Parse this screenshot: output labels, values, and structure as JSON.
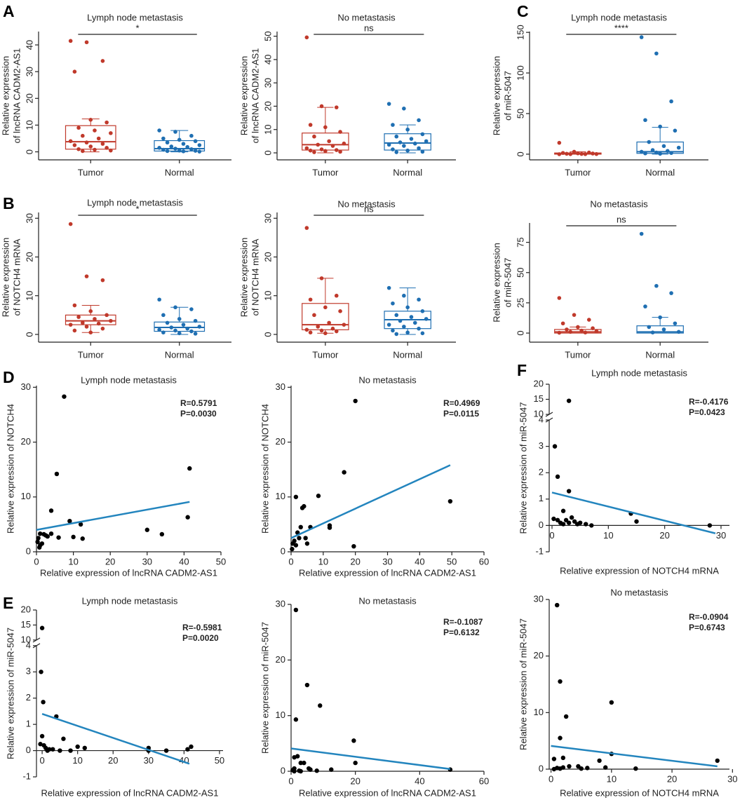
{
  "chart_data": [
    {
      "type": "box",
      "panel": "A",
      "title": "Lymph node metastasis",
      "ylabel": [
        "Relative expression",
        "of lncRNA CADM2-AS1"
      ],
      "categories": [
        "Tumor",
        "Normal"
      ],
      "significance": "*",
      "groups": [
        {
          "color": "#c0392b",
          "values": [
            41.5,
            41,
            34,
            30,
            12,
            11,
            9,
            8,
            7,
            6,
            5,
            4,
            3.5,
            3,
            2.5,
            2,
            1.5,
            1,
            0.8,
            0.5,
            0.3
          ],
          "box": {
            "whislo": 0,
            "q1": 1,
            "median": 3.8,
            "q3": 9.8,
            "whishi": 12.3
          }
        },
        {
          "color": "#1f6fb2",
          "values": [
            8,
            7.5,
            6,
            5,
            4.5,
            4,
            3.5,
            3,
            2.5,
            2,
            1.8,
            1.5,
            1.2,
            1,
            0.8,
            0.5,
            0.4,
            0.3,
            0.2,
            0.1
          ],
          "box": {
            "whislo": 0,
            "q1": 0.3,
            "median": 1.2,
            "q3": 4.2,
            "whishi": 8
          }
        }
      ],
      "ylim": [
        -3,
        45
      ],
      "yticks": [
        0,
        10,
        20,
        30,
        40
      ]
    },
    {
      "type": "box",
      "title": "No metastasis",
      "ylabel": [
        "Relative expression",
        "of lncRNA CADM2-AS1"
      ],
      "categories": [
        "Tumor",
        "Normal"
      ],
      "significance": "ns",
      "groups": [
        {
          "color": "#c0392b",
          "values": [
            49.5,
            20,
            19.5,
            12,
            11,
            9,
            7,
            5,
            4,
            3.5,
            3,
            2,
            1.5,
            1.2,
            1,
            0.8,
            0.5,
            0.3
          ],
          "box": {
            "whislo": 0,
            "q1": 1.2,
            "median": 3.5,
            "q3": 8.5,
            "whishi": 19.5
          }
        },
        {
          "color": "#1f6fb2",
          "values": [
            21,
            19,
            14,
            12,
            10,
            8,
            7,
            6,
            5,
            4.5,
            4,
            3.5,
            3,
            2,
            1.5,
            1,
            0.5,
            0.3
          ],
          "box": {
            "whislo": 0,
            "q1": 1.2,
            "median": 4.2,
            "q3": 8.2,
            "whishi": 12
          }
        }
      ],
      "ylim": [
        -3,
        52
      ],
      "yticks": [
        0,
        10,
        20,
        30,
        40,
        50
      ]
    },
    {
      "type": "box",
      "panel": "C",
      "title": "Lymph node metastasis",
      "ylabel": [
        "Relative expression",
        "of miR-5047"
      ],
      "categories": [
        "Tumor",
        "Normal"
      ],
      "significance": "****",
      "groups": [
        {
          "color": "#c0392b",
          "values": [
            14,
            3,
            2,
            1.5,
            1,
            0.8,
            0.5,
            0.3,
            0.2,
            0.1,
            0.1,
            0
          ],
          "box": {
            "whislo": 0,
            "q1": 0,
            "median": 0.5,
            "q3": 1.5,
            "whishi": 3
          }
        },
        {
          "color": "#1f6fb2",
          "values": [
            144,
            124,
            65,
            42,
            34,
            29,
            15,
            10,
            8,
            5,
            4,
            3,
            2,
            1.5,
            1,
            0.5
          ],
          "box": {
            "whislo": 0,
            "q1": 1,
            "median": 3,
            "q3": 15,
            "whishi": 33
          }
        }
      ],
      "ylim": [
        -7,
        151
      ],
      "yticks": [
        0,
        50,
        100,
        150
      ]
    },
    {
      "type": "box",
      "panel": "B",
      "title": "Lymph node metastasis",
      "ylabel": [
        "Relative expression",
        "of NOTCH4 mRNA"
      ],
      "categories": [
        "Tumor",
        "Normal"
      ],
      "significance": "*",
      "groups": [
        {
          "color": "#c0392b",
          "values": [
            28.5,
            15,
            14,
            7.5,
            6,
            5,
            4.5,
            4,
            3.5,
            3,
            2.8,
            2.5,
            2,
            1.5,
            1,
            0.5
          ],
          "box": {
            "whislo": 0.5,
            "q1": 2.5,
            "median": 3.5,
            "q3": 5,
            "whishi": 7.5
          }
        },
        {
          "color": "#1f6fb2",
          "values": [
            9,
            7,
            6.5,
            5,
            4,
            3.5,
            3,
            2.5,
            2,
            1.8,
            1.5,
            1.2,
            1,
            0.8,
            0.5,
            0.3,
            0.2
          ],
          "box": {
            "whislo": 0,
            "q1": 0.8,
            "median": 1.8,
            "q3": 3.2,
            "whishi": 7
          }
        }
      ],
      "ylim": [
        -2,
        31.5
      ],
      "yticks": [
        0,
        10,
        20,
        30
      ]
    },
    {
      "type": "box",
      "title": "No metastasis",
      "ylabel": [
        "Relative expression",
        "of NOTCH4 mRNA"
      ],
      "categories": [
        "Tumor",
        "Normal"
      ],
      "significance": "ns",
      "groups": [
        {
          "color": "#c0392b",
          "values": [
            27.5,
            14.5,
            10,
            9,
            7,
            6,
            5,
            3,
            2.5,
            2,
            1.5,
            1.2,
            1,
            0.8,
            0.5,
            0.3
          ],
          "box": {
            "whislo": 0.3,
            "q1": 1.2,
            "median": 2.5,
            "q3": 8,
            "whishi": 14.5
          }
        },
        {
          "color": "#1f6fb2",
          "values": [
            12,
            10,
            9,
            8,
            7,
            6,
            5,
            4.5,
            4,
            3.5,
            3,
            2.5,
            2,
            1.5,
            1,
            0.5,
            0.3,
            0.1
          ],
          "box": {
            "whislo": 0,
            "q1": 1.5,
            "median": 3.8,
            "q3": 6,
            "whishi": 12
          }
        }
      ],
      "ylim": [
        -2,
        31.5
      ],
      "yticks": [
        0,
        10,
        20,
        30
      ]
    },
    {
      "type": "box",
      "title": "No metastasis",
      "ylabel": [
        "Relative expression",
        "of miR-5047"
      ],
      "categories": [
        "Tumor",
        "Normal"
      ],
      "significance": "ns",
      "groups": [
        {
          "color": "#c0392b",
          "values": [
            29,
            15,
            11,
            8,
            5,
            4,
            3,
            2,
            1.5,
            1,
            0.5,
            0.3
          ],
          "box": {
            "whislo": 0,
            "q1": 0,
            "median": 1,
            "q3": 3,
            "whishi": 5
          }
        },
        {
          "color": "#1f6fb2",
          "values": [
            82,
            39,
            33,
            22,
            13,
            8,
            5,
            3,
            1,
            0.5
          ],
          "box": {
            "whislo": 0,
            "q1": 0,
            "median": 1,
            "q3": 6,
            "whishi": 13
          }
        }
      ],
      "ylim": [
        -7.5,
        91
      ],
      "yticks": [
        0,
        25,
        50,
        75
      ]
    },
    {
      "type": "scatter",
      "panel": "D",
      "title": "Lymph node metastasis",
      "xlabel": "Relative expression of lncRNA CADM2-AS1",
      "ylabel": "Relative expression of NOTCH4",
      "stats": [
        "R=0.5791",
        "P=0.0030"
      ],
      "color": "#000000",
      "x": [
        7.5,
        41.5,
        5.5,
        41,
        4,
        9,
        12,
        30,
        34,
        12.5,
        10,
        6,
        4,
        3,
        2,
        1,
        0.5,
        0.3,
        1.5,
        0.8,
        1,
        2.5
      ],
      "y": [
        28.3,
        15.2,
        14.2,
        6.3,
        7.5,
        5.6,
        5,
        4,
        3.2,
        2.4,
        2.7,
        2.6,
        3.3,
        2.8,
        3.2,
        3.3,
        2.5,
        1.8,
        1.5,
        0.8,
        1.2,
        3
      ],
      "fit": {
        "color": "#2385be",
        "x": [
          0,
          41.5
        ],
        "y": [
          4,
          9.1
        ]
      },
      "xlim": [
        0,
        50
      ],
      "xticks": [
        0,
        10,
        20,
        30,
        40,
        50
      ],
      "ylim": [
        0,
        30.3
      ],
      "yticks": [
        0,
        10,
        20,
        30
      ]
    },
    {
      "type": "scatter",
      "title": "No metastasis",
      "xlabel": "Relative expression of lncRNA CADM2-AS1",
      "ylabel": "Relative expression of NOTCH4",
      "stats": [
        "R=0.4969",
        "P=0.0115"
      ],
      "color": "#000000",
      "x": [
        20,
        16.5,
        8.5,
        1.5,
        49.5,
        3.5,
        4,
        12,
        12,
        6,
        3,
        2,
        1,
        0.5,
        1.5,
        5,
        2.5,
        19.5,
        0.3,
        4.5
      ],
      "y": [
        27.5,
        14.5,
        10.2,
        10,
        9.2,
        8,
        8.3,
        4.8,
        4.4,
        4.5,
        4.5,
        3.5,
        2,
        1.5,
        1.2,
        1.5,
        2.5,
        1,
        0.5,
        2.5
      ],
      "fit": {
        "color": "#2385be",
        "x": [
          0,
          49.5
        ],
        "y": [
          2.5,
          15.8
        ]
      },
      "xlim": [
        0,
        60
      ],
      "xticks": [
        0,
        10,
        20,
        30,
        40,
        50,
        60
      ],
      "ylim": [
        0,
        30.3
      ],
      "yticks": [
        0,
        10,
        20,
        30
      ]
    },
    {
      "type": "scatter",
      "panel": "F",
      "title": "Lymph node metastasis",
      "xlabel": "Relative expression of NOTCH4 mRNA",
      "ylabel": "Relative expression of miR-5047",
      "stats": [
        "R=-0.4176",
        "P=0.0423"
      ],
      "color": "#000000",
      "x": [
        3,
        0.5,
        1,
        3,
        14,
        15,
        28,
        0.3,
        1,
        2,
        2.5,
        3,
        4,
        4.5,
        5,
        6,
        7,
        1.5,
        2,
        3.5
      ],
      "y": [
        14.5,
        3,
        1.85,
        1.3,
        0.45,
        0.15,
        0,
        0.25,
        0.2,
        0.55,
        0.2,
        0.1,
        0.15,
        0.05,
        0.1,
        0.05,
        0,
        0.1,
        0.05,
        0.3
      ],
      "fit": {
        "color": "#2385be",
        "x": [
          0,
          29
        ],
        "y": [
          1.25,
          -0.3
        ]
      },
      "xlim": [
        -0.5,
        31.5
      ],
      "xticks": [
        0,
        10,
        20,
        30
      ],
      "xaxis_at": 0,
      "ysegments": [
        {
          "ylim": [
            -1,
            4
          ],
          "yticks": [
            -1,
            0,
            1,
            2,
            3,
            4
          ]
        },
        {
          "ylim": [
            10,
            20
          ],
          "yticks": [
            10,
            15,
            20
          ]
        }
      ]
    },
    {
      "type": "scatter",
      "panel": "E",
      "title": "Lymph node metastasis",
      "xlabel": "Relative expression of lncRNA CADM2-AS1",
      "ylabel": "Relative expression of miR-5047",
      "stats": [
        "R=-0.5981",
        "P=0.0020"
      ],
      "color": "#000000",
      "x": [
        0,
        -0.3,
        0.3,
        4,
        0,
        6,
        -0.5,
        0.5,
        1,
        2,
        3,
        5,
        10,
        12,
        30,
        30,
        35,
        41,
        42,
        8,
        1.5
      ],
      "y": [
        14,
        3,
        1.85,
        1.3,
        0.55,
        0.45,
        0.25,
        0.2,
        0.1,
        0.05,
        0.05,
        0,
        0.15,
        0.1,
        0.1,
        0,
        0,
        0.05,
        0.15,
        0,
        0
      ],
      "fit": {
        "color": "#2385be",
        "x": [
          0,
          41.5
        ],
        "y": [
          1.4,
          -0.5
        ]
      },
      "xlim": [
        -1.6,
        51
      ],
      "xticks": [
        0,
        10,
        20,
        30,
        40,
        50
      ],
      "xaxis_at": 0,
      "ysegments": [
        {
          "ylim": [
            -1,
            4
          ],
          "yticks": [
            -1,
            0,
            1,
            2,
            3,
            4
          ]
        },
        {
          "ylim": [
            10,
            20
          ],
          "yticks": [
            10,
            15,
            20
          ]
        }
      ]
    },
    {
      "type": "scatter",
      "title": "No metastasis",
      "xlabel": "Relative expression of lncRNA CADM2-AS1",
      "ylabel": "Relative expression of miR-5047",
      "stats": [
        "R=-0.1087",
        "P=0.6132"
      ],
      "color": "#000000",
      "x": [
        1.5,
        5,
        9,
        1.5,
        19.5,
        20,
        2,
        1,
        3,
        4,
        5.5,
        6,
        1,
        0.5,
        2.5,
        12.5,
        49.5,
        8,
        3,
        1
      ],
      "y": [
        29,
        15.5,
        11.8,
        9.3,
        5.5,
        1.5,
        2.7,
        2.5,
        1.5,
        1.5,
        0.5,
        0.3,
        0.5,
        0.2,
        0.1,
        0.3,
        0.3,
        0.1,
        0,
        0
      ],
      "fit": {
        "color": "#2385be",
        "x": [
          0,
          49.5
        ],
        "y": [
          4.1,
          0.4
        ]
      },
      "xlim": [
        0,
        60
      ],
      "xticks": [
        0,
        20,
        40,
        60
      ],
      "ylim": [
        0,
        30
      ],
      "yticks": [
        0,
        10,
        20,
        30
      ]
    },
    {
      "type": "scatter",
      "title": "No metastasis",
      "xlabel": "Relative expression of NOTCH4 mRNA",
      "ylabel": "Relative expression of miR-5047",
      "stats": [
        "R=-0.0904",
        "P=0.6743"
      ],
      "color": "#000000",
      "x": [
        1,
        1.5,
        10,
        2.5,
        1.5,
        27.5,
        10,
        8,
        0.5,
        3,
        4.5,
        2,
        1,
        0.5,
        5,
        6,
        9,
        14,
        1.5,
        2
      ],
      "y": [
        29,
        15.5,
        11.8,
        9.3,
        5.5,
        1.5,
        2.7,
        1.5,
        1.8,
        0.5,
        0.5,
        0.3,
        0.2,
        0,
        0.1,
        0.2,
        0.3,
        0.1,
        0.1,
        2
      ],
      "fit": {
        "color": "#2385be",
        "x": [
          0,
          27.5
        ],
        "y": [
          4.1,
          0.5
        ]
      },
      "xlim": [
        -0.3,
        29.5
      ],
      "xticks": [
        0,
        10,
        20,
        30
      ],
      "ylim": [
        0,
        30
      ],
      "yticks": [
        0,
        10,
        20,
        30
      ]
    }
  ]
}
